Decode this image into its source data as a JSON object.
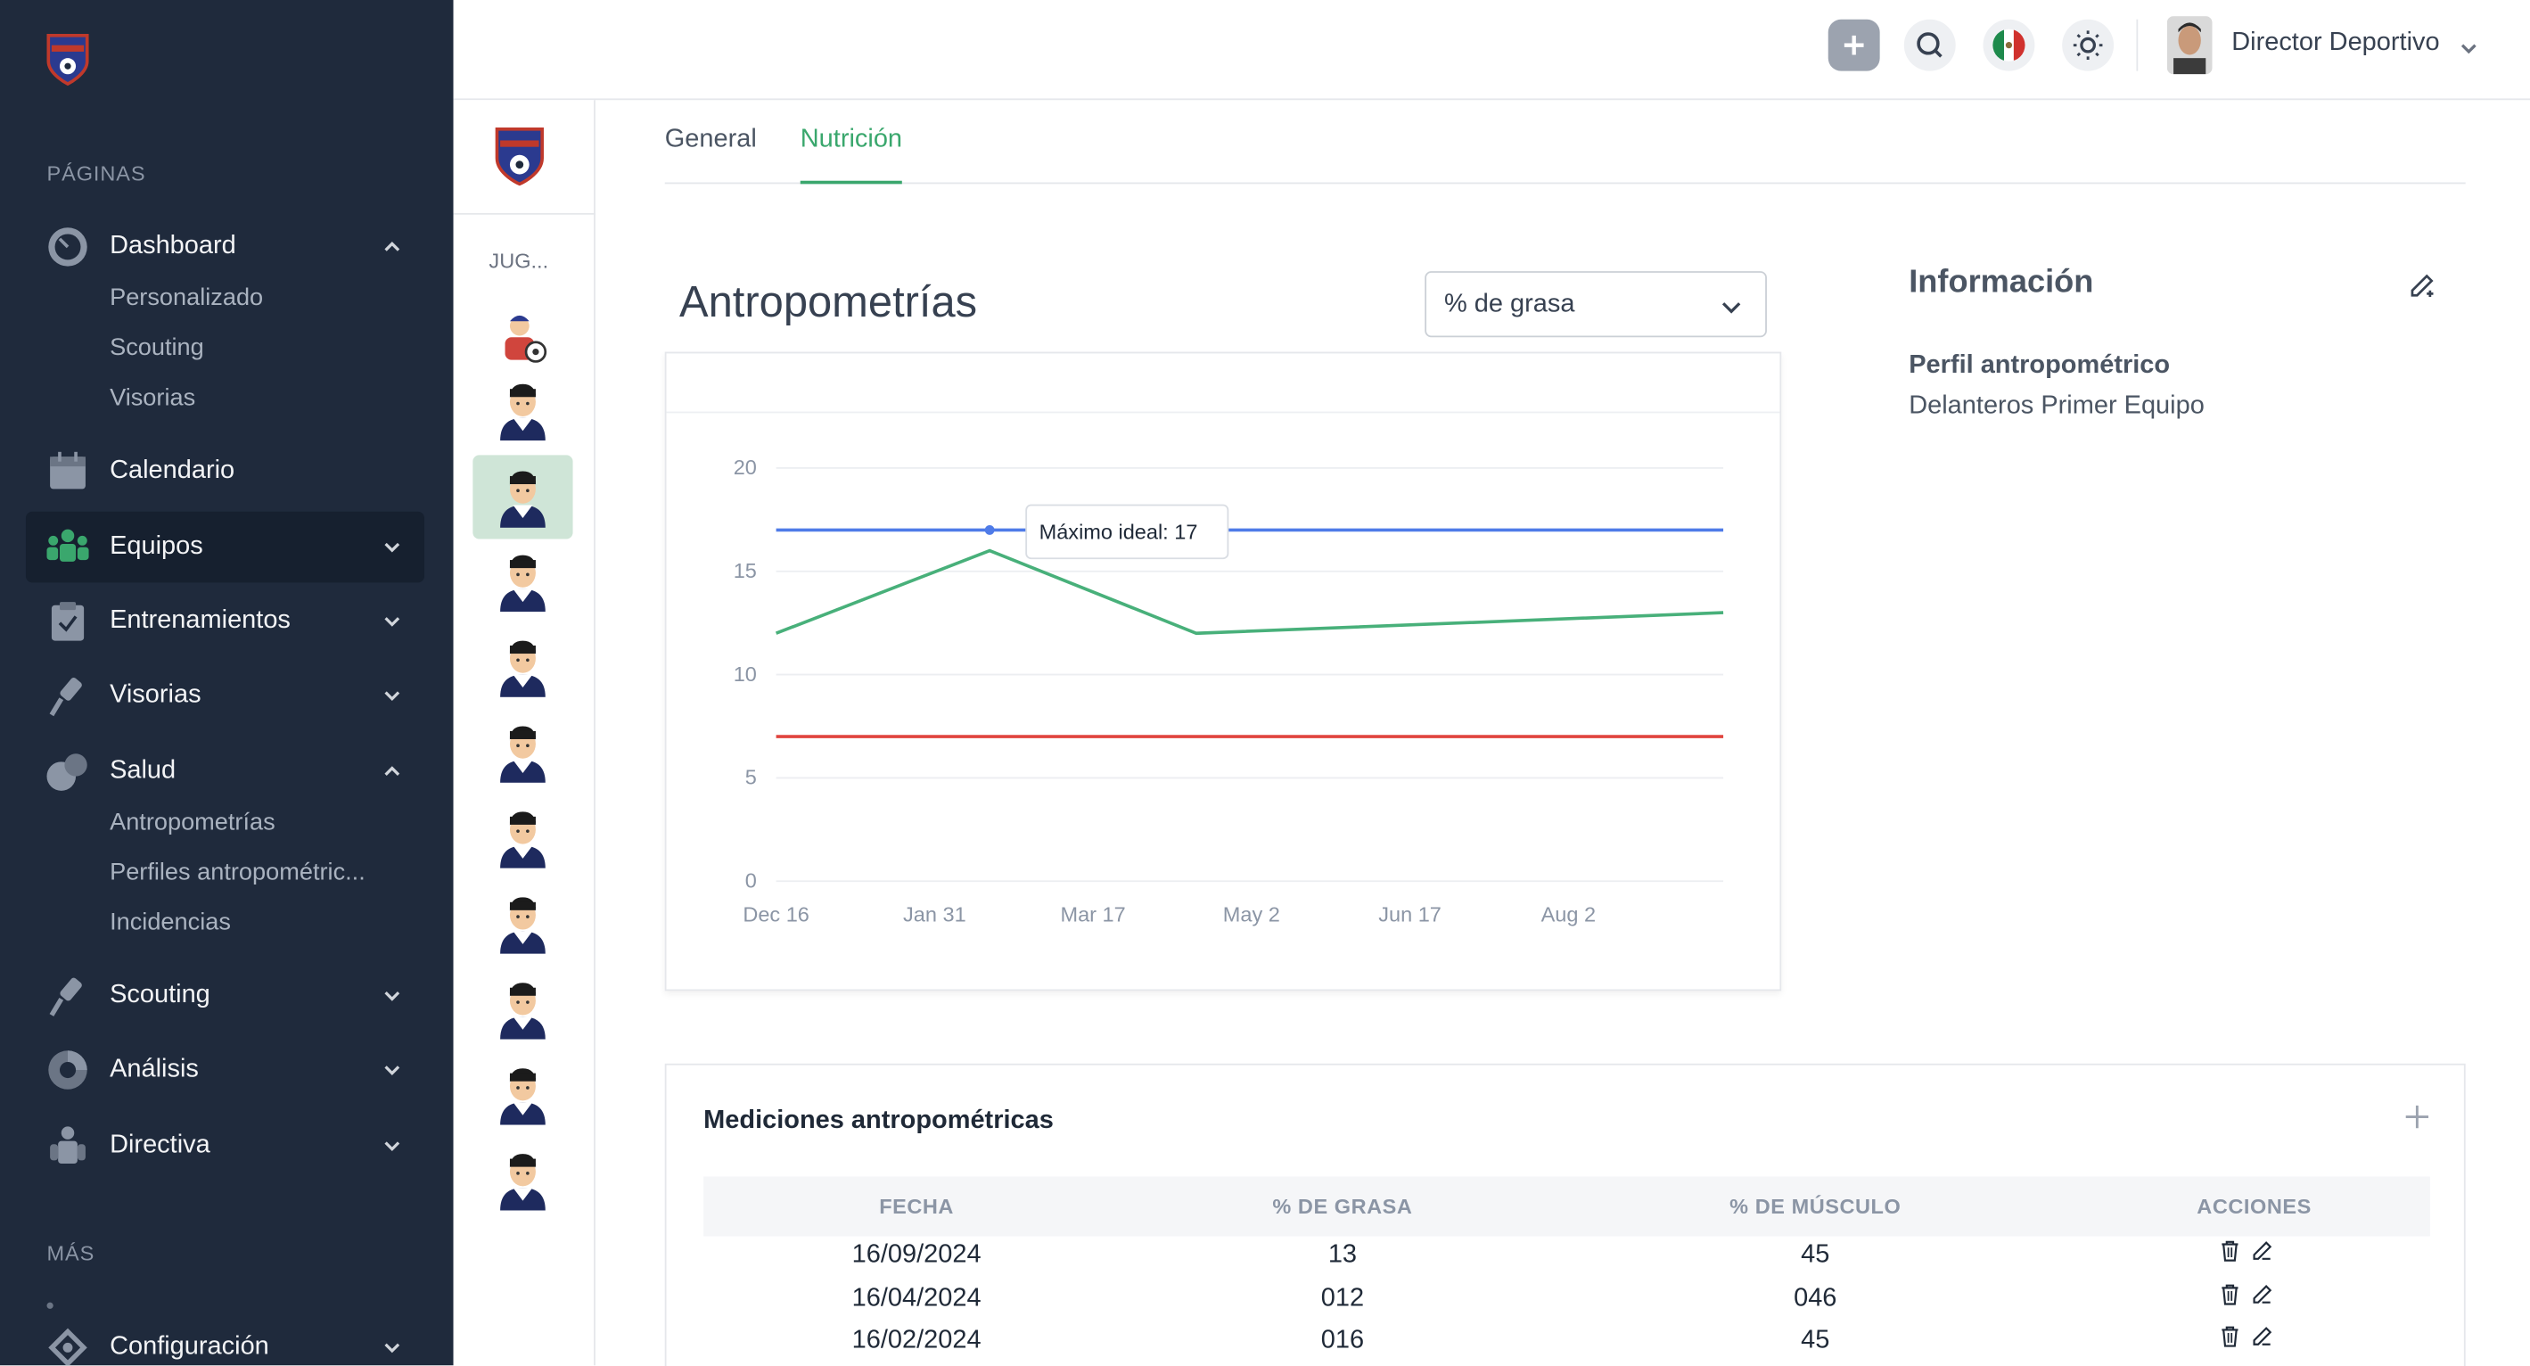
{
  "sidebar": {
    "section_pages": "PÁGINAS",
    "section_more": "MÁS",
    "items": [
      {
        "label": "Dashboard"
      },
      {
        "label": "Calendario"
      },
      {
        "label": "Equipos"
      },
      {
        "label": "Entrenamientos"
      },
      {
        "label": "Visorias"
      },
      {
        "label": "Salud"
      },
      {
        "label": "Scouting"
      },
      {
        "label": "Análisis"
      },
      {
        "label": "Directiva"
      },
      {
        "label": "Configuración"
      }
    ],
    "dashboard_sub": [
      "Personalizado",
      "Scouting",
      "Visorias"
    ],
    "salud_sub": [
      "Antropometrías",
      "Perfiles antropométric...",
      "Incidencias"
    ]
  },
  "topbar": {
    "user_name": "Director Deportivo",
    "icons": [
      "add-icon",
      "search-icon",
      "mexico-flag-icon",
      "sun-icon"
    ]
  },
  "player_column": {
    "label": "JUG..."
  },
  "tabs": [
    {
      "label": "General"
    },
    {
      "label": "Nutrición"
    }
  ],
  "chart_section": {
    "title": "Antropometrías",
    "select_value": "% de grasa"
  },
  "chart_data": {
    "type": "line",
    "x_ticks": [
      "Dec 16",
      "Jan 31",
      "Mar 17",
      "May 2",
      "Jun 17",
      "Aug 2"
    ],
    "ylim": [
      0,
      20
    ],
    "y_ticks": [
      0,
      5,
      10,
      15,
      20
    ],
    "grid": true,
    "series": [
      {
        "color": "#4f7be8",
        "x": [
          "2023-12-16",
          "2024-09-16"
        ],
        "values": [
          17,
          17
        ]
      },
      {
        "color": "#48b07a",
        "x": [
          "2023-12-16",
          "2024-02-16",
          "2024-04-16",
          "2024-09-16"
        ],
        "values": [
          12,
          16,
          12,
          13
        ]
      },
      {
        "color": "#e0443e",
        "x": [
          "2023-12-16",
          "2024-09-16"
        ],
        "values": [
          7,
          7
        ]
      }
    ],
    "tooltip": {
      "text": "Máximo ideal: 17",
      "x": "2024-02-16",
      "value": 17
    }
  },
  "info": {
    "title": "Información",
    "profile_label": "Perfil antropométrico",
    "profile_value": "Delanteros Primer Equipo"
  },
  "table": {
    "title": "Mediciones antropométricas",
    "headers": [
      "FECHA",
      "% DE GRASA",
      "% DE MÚSCULO",
      "ACCIONES"
    ],
    "rows": [
      [
        "16/09/2024",
        "13",
        "45"
      ],
      [
        "16/04/2024",
        "012",
        "046"
      ],
      [
        "16/02/2024",
        "016",
        "45"
      ]
    ]
  },
  "colors": {
    "sidebar_bg": "#1f2a3c",
    "accent_green": "#3aa76d",
    "selected_player_bg": "#cfe5d7"
  }
}
